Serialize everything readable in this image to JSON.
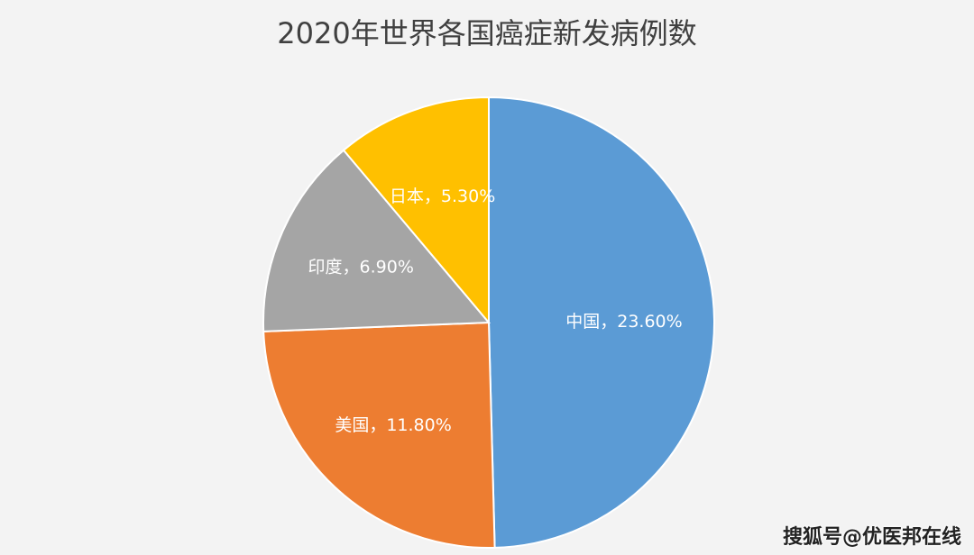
{
  "chart_data": {
    "type": "pie",
    "title": "2020年世界各国癌症新发病例数",
    "categories": [
      "中国",
      "美国",
      "印度",
      "日本"
    ],
    "values": [
      23.6,
      11.8,
      6.9,
      5.3
    ],
    "labels": [
      "中国，23.60%",
      "美国，11.80%",
      "印度，6.90%",
      "日本，5.30%"
    ],
    "colors": [
      "#5B9BD5",
      "#ED7D31",
      "#A5A5A5",
      "#FFC000"
    ],
    "start_angle": "12 o'clock",
    "direction": "clockwise",
    "legend": "none"
  },
  "watermark": "搜狐号@优医邦在线"
}
